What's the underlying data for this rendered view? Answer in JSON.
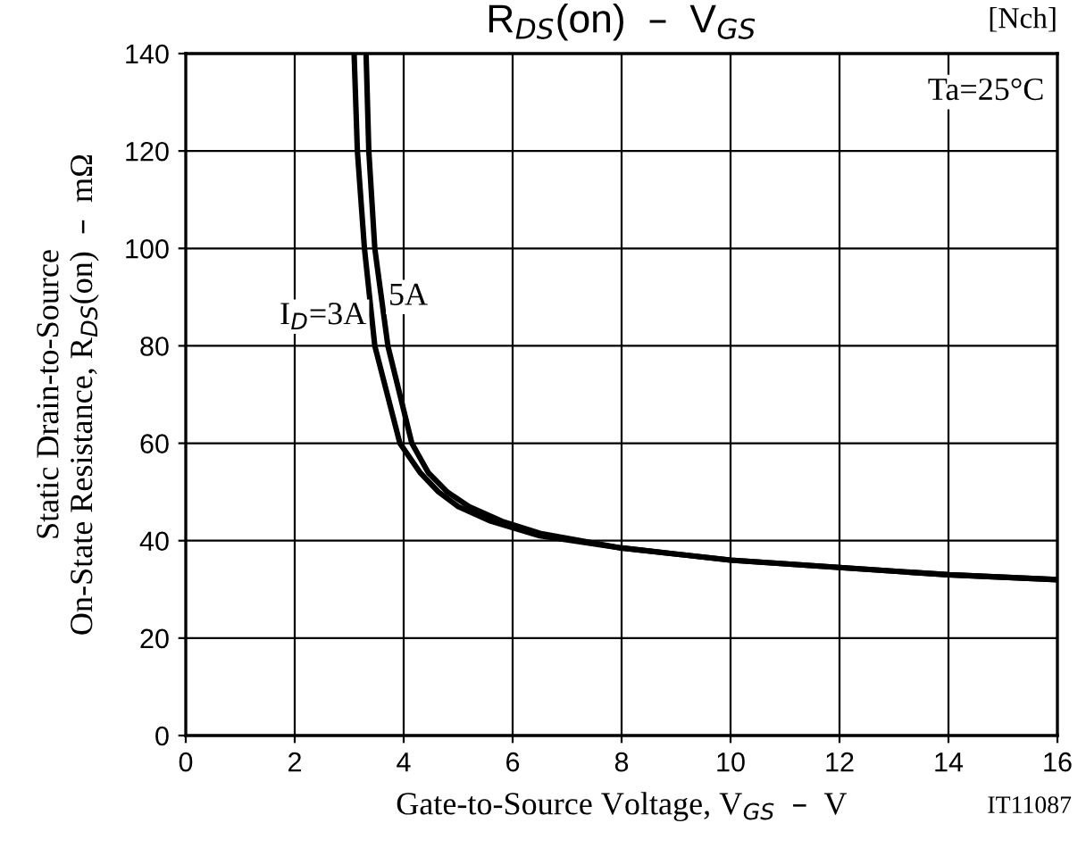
{
  "chart_data": {
    "type": "line",
    "title": "R$_{DS}$(on)  –  V$_{GS}$",
    "xlabel": "Gate-to-Source Voltage, V$_{GS}$  –  V",
    "ylabel": "Static Drain-to-Source\nOn-State Resistance, R$_{DS}$(on)  –  mΩ",
    "xlim": [
      0,
      16
    ],
    "ylim": [
      0,
      140
    ],
    "xticks": [
      0,
      2,
      4,
      6,
      8,
      10,
      12,
      14,
      16
    ],
    "yticks": [
      0,
      20,
      40,
      60,
      80,
      100,
      120,
      140
    ],
    "grid": true,
    "legend": false,
    "annotations": [
      "Ta=25°C",
      "[Nch]",
      "IT11087"
    ],
    "series": [
      {
        "name": "I$_{D}$=3A",
        "color": "#000000",
        "x": [
          3.09,
          3.15,
          3.28,
          3.47,
          3.93,
          4.3,
          4.64,
          5.0,
          5.6,
          6.5,
          8,
          10,
          12,
          14,
          16
        ],
        "values": [
          140,
          120,
          100,
          80,
          60,
          54,
          50,
          47,
          44,
          41,
          38.5,
          36,
          34.5,
          33,
          32
        ]
      },
      {
        "name": "5A",
        "color": "#000000",
        "x": [
          3.31,
          3.36,
          3.47,
          3.71,
          4.15,
          4.45,
          4.8,
          5.2,
          5.8,
          6.5,
          8,
          10,
          12,
          14,
          16
        ],
        "values": [
          140,
          120,
          100,
          80,
          60,
          54,
          50,
          47,
          44,
          41.5,
          38.5,
          36,
          34.5,
          33,
          32
        ]
      }
    ]
  }
}
